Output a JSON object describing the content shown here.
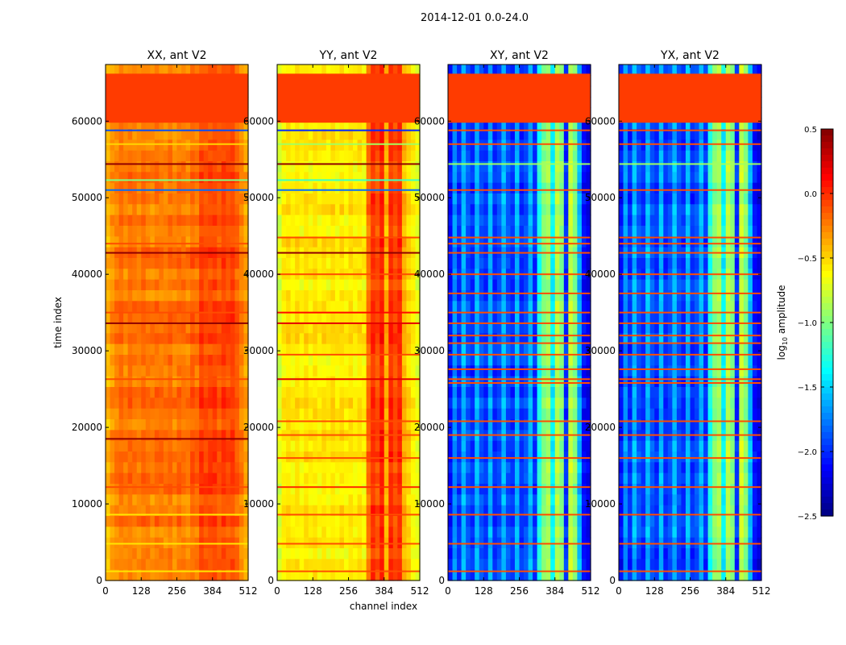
{
  "chart_data": {
    "type": "heatmap",
    "title": "2014-12-01 0.0-24.0",
    "xlabel": "channel index",
    "ylabel": "time index",
    "xlim": [
      0,
      512
    ],
    "ylim": [
      0,
      67400
    ],
    "xticks": [
      "0",
      "128",
      "256",
      "384",
      "512"
    ],
    "yticks": [
      "0",
      "10000",
      "20000",
      "30000",
      "40000",
      "50000",
      "60000"
    ],
    "colorbar": {
      "label_main": "log",
      "label_sub": "10",
      "label_tail": " amplitude",
      "range": [
        -2.5,
        0.5
      ],
      "ticks": [
        "0.5",
        "0.0",
        "−0.5",
        "−1.0",
        "−1.5",
        "−2.0",
        "−2.5"
      ],
      "tick_values": [
        0.5,
        0.0,
        -0.5,
        -1.0,
        -1.5,
        -2.0,
        -2.5
      ],
      "colormap": "jet"
    },
    "flag_block": {
      "time_range": [
        59800,
        66200
      ],
      "value": -0.05
    },
    "panels": [
      {
        "title": "XX, ant V2",
        "channel_profile": [
          -0.4,
          -0.3,
          -0.25,
          -0.2,
          -0.25,
          -0.2,
          -0.22,
          -0.25,
          -0.2,
          -0.22,
          -0.25,
          -0.2,
          -0.22,
          -0.25,
          -0.2,
          -0.25,
          -0.2,
          -0.22,
          -0.25,
          -0.15,
          -0.2,
          -0.05,
          -0.1,
          -0.08,
          -0.05,
          -0.12,
          -0.05,
          -0.1,
          -0.05,
          -0.15,
          -0.25,
          -0.35
        ],
        "lines": [
          [
            1200,
            -0.55
          ],
          [
            4800,
            -0.55
          ],
          [
            8600,
            -0.55
          ],
          [
            12200,
            -0.1
          ],
          [
            18500,
            0.45
          ],
          [
            26300,
            -0.1
          ],
          [
            33600,
            0.45
          ],
          [
            35000,
            -0.1
          ],
          [
            42800,
            0.45
          ],
          [
            44000,
            -0.1
          ],
          [
            51000,
            -1.8
          ],
          [
            52300,
            -1.0
          ],
          [
            54400,
            0.45
          ],
          [
            57000,
            -0.5
          ],
          [
            58800,
            -1.9
          ]
        ]
      },
      {
        "title": "YY, ant V2",
        "channel_profile": [
          -0.75,
          -0.6,
          -0.55,
          -0.6,
          -0.55,
          -0.6,
          -0.55,
          -0.6,
          -0.55,
          -0.6,
          -0.55,
          -0.6,
          -0.55,
          -0.6,
          -0.55,
          -0.6,
          -0.55,
          -0.6,
          -0.55,
          -0.6,
          -0.2,
          0.0,
          -0.1,
          0.05,
          -0.4,
          0.0,
          -0.1,
          0.0,
          -0.4,
          -0.5,
          -0.6,
          -0.7
        ],
        "lines": [
          [
            1200,
            -0.1
          ],
          [
            4800,
            -0.1
          ],
          [
            8600,
            -0.1
          ],
          [
            12200,
            0.0
          ],
          [
            16000,
            -0.1
          ],
          [
            19000,
            -0.1
          ],
          [
            20800,
            -0.1
          ],
          [
            26300,
            0.2
          ],
          [
            29500,
            -0.1
          ],
          [
            33600,
            0.2
          ],
          [
            35000,
            0.1
          ],
          [
            40000,
            -0.1
          ],
          [
            42800,
            0.45
          ],
          [
            44800,
            -0.1
          ],
          [
            51000,
            -1.8
          ],
          [
            52300,
            -1.2
          ],
          [
            54400,
            0.45
          ],
          [
            57000,
            -0.9
          ],
          [
            58800,
            -2.0
          ]
        ]
      },
      {
        "title": "XY, ant V2",
        "channel_profile": [
          -2.1,
          -1.7,
          -2.0,
          -1.6,
          -1.9,
          -2.0,
          -1.6,
          -1.9,
          -2.0,
          -1.6,
          -2.0,
          -1.9,
          -1.6,
          -1.9,
          -2.0,
          -1.6,
          -2.0,
          -1.9,
          -1.6,
          -2.0,
          -1.3,
          -1.0,
          -0.9,
          -1.4,
          -0.85,
          -1.0,
          -2.0,
          -0.8,
          -1.0,
          -1.6,
          -2.1,
          -2.2
        ],
        "lines": [
          [
            1200,
            -0.1
          ],
          [
            4800,
            -0.1
          ],
          [
            8600,
            -0.1
          ],
          [
            12200,
            -0.1
          ],
          [
            16000,
            -0.1
          ],
          [
            19000,
            -0.1
          ],
          [
            20800,
            -0.1
          ],
          [
            25800,
            -0.1
          ],
          [
            26300,
            -0.1
          ],
          [
            27600,
            -0.1
          ],
          [
            29500,
            -0.1
          ],
          [
            31000,
            -0.1
          ],
          [
            32000,
            -0.1
          ],
          [
            33600,
            -0.1
          ],
          [
            35000,
            -0.1
          ],
          [
            37500,
            -0.1
          ],
          [
            40000,
            -0.1
          ],
          [
            42800,
            -0.1
          ],
          [
            44000,
            -0.1
          ],
          [
            44800,
            -0.1
          ],
          [
            51000,
            -0.1
          ],
          [
            54400,
            -0.9
          ],
          [
            57000,
            -0.1
          ],
          [
            58800,
            -0.1
          ]
        ]
      },
      {
        "title": "YX, ant V2",
        "channel_profile": [
          -2.1,
          -1.7,
          -2.0,
          -1.6,
          -1.9,
          -2.0,
          -1.6,
          -1.9,
          -2.0,
          -1.6,
          -2.0,
          -1.9,
          -1.6,
          -1.9,
          -2.0,
          -1.6,
          -2.0,
          -1.9,
          -1.6,
          -2.0,
          -1.3,
          -1.0,
          -0.9,
          -1.4,
          -0.85,
          -1.0,
          -2.0,
          -0.8,
          -1.0,
          -1.6,
          -2.1,
          -2.2
        ],
        "lines": [
          [
            1200,
            -0.1
          ],
          [
            4800,
            -0.1
          ],
          [
            8600,
            -0.1
          ],
          [
            12200,
            -0.1
          ],
          [
            16000,
            -0.1
          ],
          [
            19000,
            -0.1
          ],
          [
            20800,
            -0.1
          ],
          [
            25800,
            -0.1
          ],
          [
            26300,
            -0.1
          ],
          [
            27600,
            -0.1
          ],
          [
            29500,
            -0.1
          ],
          [
            31000,
            -0.1
          ],
          [
            32000,
            -0.1
          ],
          [
            33600,
            -0.1
          ],
          [
            35000,
            -0.1
          ],
          [
            37500,
            -0.1
          ],
          [
            40000,
            -0.1
          ],
          [
            42800,
            -0.1
          ],
          [
            44000,
            -0.1
          ],
          [
            44800,
            -0.1
          ],
          [
            51000,
            -0.1
          ],
          [
            54400,
            -0.9
          ],
          [
            57000,
            -0.1
          ],
          [
            58800,
            -0.1
          ]
        ]
      }
    ]
  }
}
